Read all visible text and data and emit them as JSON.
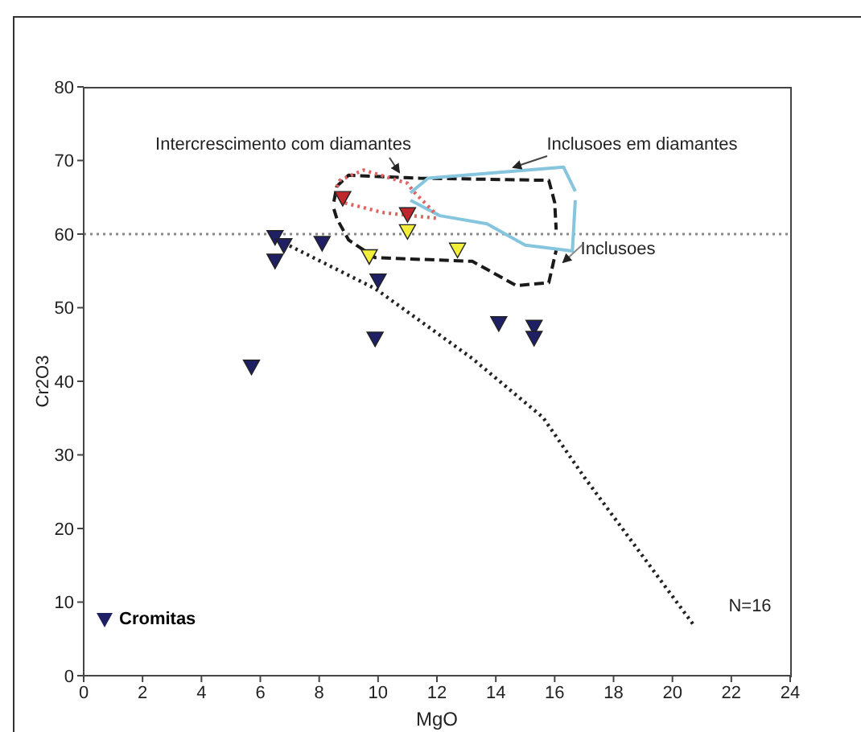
{
  "chart_data": {
    "type": "scatter",
    "xlabel": "MgO",
    "ylabel": "Cr2O3",
    "xlim": [
      0,
      24
    ],
    "ylim": [
      0,
      80
    ],
    "xticks": [
      0,
      2,
      4,
      6,
      8,
      10,
      12,
      14,
      16,
      18,
      20,
      22,
      24
    ],
    "yticks": [
      0,
      10,
      20,
      30,
      40,
      50,
      60,
      70,
      80
    ],
    "legend": "bottom left",
    "series": [
      {
        "type": "line",
        "color": "#1a1a1a",
        "line_style": "dashed",
        "x": [
          8.5,
          8.6,
          9.0,
          11.4,
          15.8,
          16.0,
          16.05
        ],
        "values": [
          64.4,
          66.5,
          68.0,
          67.6,
          67.3,
          64.3,
          60.6
        ]
      },
      {
        "type": "line",
        "color": "#1a1a1a",
        "line_style": "dashed",
        "x": [
          8.5,
          8.6,
          9.0,
          9.9,
          13.2,
          14.7,
          15.8,
          16.05
        ],
        "values": [
          63.4,
          62.1,
          59.2,
          56.8,
          56.3,
          53.0,
          53.4,
          57.8
        ]
      },
      {
        "type": "line",
        "color": "#86c5de",
        "line_style": "solid",
        "x": [
          11.1,
          11.7,
          16.3,
          16.7
        ],
        "values": [
          65.6,
          67.6,
          69.1,
          65.8
        ]
      },
      {
        "type": "line",
        "color": "#86c5de",
        "line_style": "solid",
        "x": [
          11.1,
          12.1,
          13.7,
          15.0,
          16.6,
          16.7
        ],
        "values": [
          64.6,
          62.5,
          61.4,
          58.5,
          57.7,
          64.6
        ]
      },
      {
        "type": "line",
        "color": "#e06464",
        "line_style": "dotted",
        "x": [
          8.6,
          8.7,
          9.5,
          11.0,
          11.2,
          12.0
        ],
        "values": [
          66.4,
          67.3,
          68.7,
          66.9,
          65.8,
          62.6
        ]
      },
      {
        "type": "line",
        "color": "#e06464",
        "line_style": "dotted",
        "x": [
          8.6,
          8.8,
          10.2,
          12.1
        ],
        "values": [
          65.5,
          64.3,
          62.9,
          62.1
        ]
      },
      {
        "type": "line",
        "color": "#222222",
        "line_style": "dotted",
        "x": [
          6.8,
          9.9,
          13.2,
          15.6,
          17.0,
          20.7
        ],
        "values": [
          58.8,
          52.6,
          43.1,
          35.1,
          27.0,
          7.0
        ]
      },
      {
        "name": "Cromitas",
        "color": "#1f1f66",
        "marker": "triangle",
        "x": [
          5.7,
          6.5,
          6.8,
          6.5,
          8.1,
          10.0,
          9.9,
          14.1,
          15.3,
          15.3
        ],
        "values": [
          42.0,
          59.6,
          58.5,
          56.4,
          58.8,
          53.7,
          45.8,
          47.9,
          47.4,
          45.9
        ]
      },
      {
        "color": "#c0272d",
        "marker": "triangle",
        "x": [
          8.8,
          11.0
        ],
        "values": [
          64.9,
          62.7
        ]
      },
      {
        "color": "#f2ee3a",
        "marker": "triangle",
        "x": [
          11.0,
          9.7,
          12.7
        ],
        "values": [
          60.4,
          57.0,
          57.9
        ]
      }
    ],
    "ref_lines": [
      {
        "axis": "y",
        "value": 60,
        "color": "#888888",
        "line_style": "dotted"
      }
    ],
    "annotations": [
      "Intercrescimento com diamantes",
      "Inclusoes em diamantes",
      "Inclusoes",
      "N=16"
    ]
  }
}
